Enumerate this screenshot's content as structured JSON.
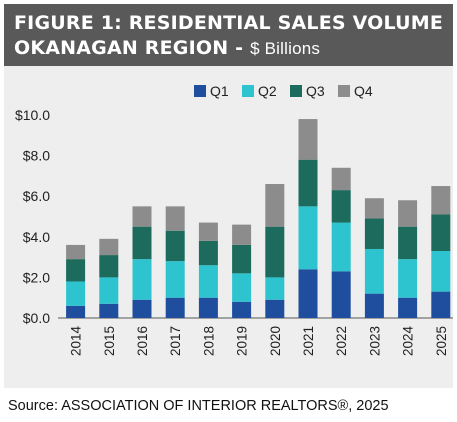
{
  "header": {
    "title_line1": "FIGURE 1: RESIDENTIAL SALES VOLUME",
    "title_line2": "OKANAGAN REGION -",
    "unit": "$ Billions"
  },
  "source": "Source: ASSOCIATION OF INTERIOR REALTORS®, 2025",
  "colors": {
    "header_bg": "#595959",
    "panel_bg": "#eeeeee",
    "Q1": "#1f4e9e",
    "Q2": "#2ec4cf",
    "Q3": "#1c6b5c",
    "Q4": "#8c8c8c"
  },
  "chart_data": {
    "type": "bar",
    "stacked": true,
    "title": "",
    "xlabel": "",
    "ylabel": "",
    "categories": [
      "2014",
      "2015",
      "2016",
      "2017",
      "2018",
      "2019",
      "2020",
      "2021",
      "2022",
      "2023",
      "2024",
      "2025"
    ],
    "series": [
      {
        "name": "Q1",
        "values": [
          0.6,
          0.7,
          0.9,
          1.0,
          1.0,
          0.8,
          0.9,
          2.4,
          2.3,
          1.2,
          1.0,
          1.3
        ]
      },
      {
        "name": "Q2",
        "values": [
          1.2,
          1.3,
          2.0,
          1.8,
          1.6,
          1.4,
          1.1,
          3.1,
          2.4,
          2.2,
          1.9,
          2.0
        ]
      },
      {
        "name": "Q3",
        "values": [
          1.1,
          1.1,
          1.6,
          1.5,
          1.2,
          1.4,
          2.5,
          2.3,
          1.6,
          1.5,
          1.6,
          1.8
        ]
      },
      {
        "name": "Q4",
        "values": [
          0.7,
          0.8,
          1.0,
          1.2,
          0.9,
          1.0,
          2.1,
          2.0,
          1.1,
          1.0,
          1.3,
          1.4
        ]
      }
    ],
    "ylim": [
      0,
      10
    ],
    "yticks": [
      "$0.0",
      "$2.0",
      "$4.0",
      "$6.0",
      "$8.0",
      "$10.0"
    ],
    "grid": false,
    "legend": "top"
  }
}
